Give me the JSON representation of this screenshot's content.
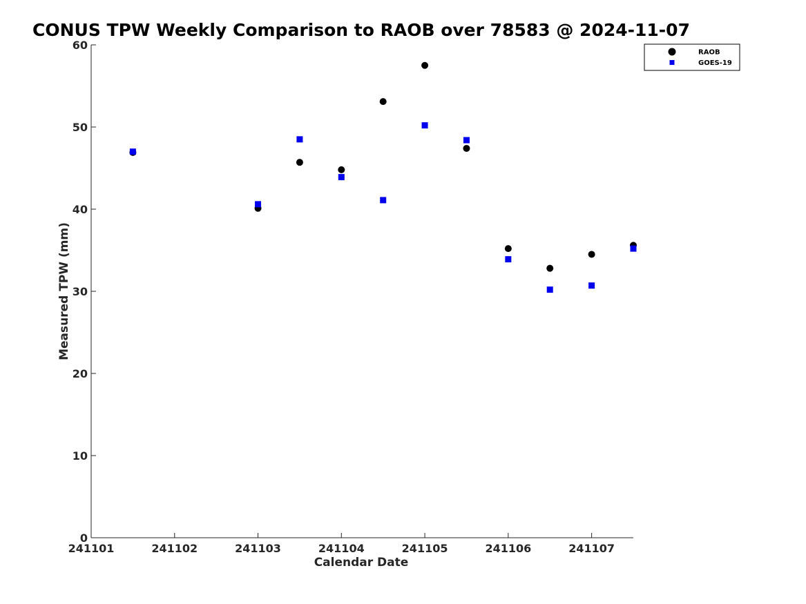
{
  "chart_data": {
    "type": "scatter",
    "title": "CONUS TPW Weekly Comparison to RAOB over 78583 @ 2024-11-07",
    "xlabel": "Calendar Date",
    "ylabel": "Measured TPW (mm)",
    "xlim": [
      241101,
      241107.5
    ],
    "ylim": [
      0,
      60
    ],
    "x_ticks": [
      {
        "value": 241101,
        "label": "241101"
      },
      {
        "value": 241102,
        "label": "241102"
      },
      {
        "value": 241103,
        "label": "241103"
      },
      {
        "value": 241104,
        "label": "241104"
      },
      {
        "value": 241105,
        "label": "241105"
      },
      {
        "value": 241106,
        "label": "241106"
      },
      {
        "value": 241107,
        "label": "241107"
      }
    ],
    "y_ticks": [
      {
        "value": 0,
        "label": "0"
      },
      {
        "value": 10,
        "label": "10"
      },
      {
        "value": 20,
        "label": "20"
      },
      {
        "value": 30,
        "label": "30"
      },
      {
        "value": 40,
        "label": "40"
      },
      {
        "value": 50,
        "label": "50"
      },
      {
        "value": 60,
        "label": "60"
      }
    ],
    "grid": false,
    "legend_position": "top-right",
    "series": [
      {
        "name": "RAOB",
        "marker": "circle",
        "color": "#000000",
        "points": [
          {
            "x": 241101.5,
            "y": 46.9
          },
          {
            "x": 241103.0,
            "y": 40.1
          },
          {
            "x": 241103.5,
            "y": 45.7
          },
          {
            "x": 241104.0,
            "y": 44.8
          },
          {
            "x": 241104.5,
            "y": 53.1
          },
          {
            "x": 241105.0,
            "y": 57.5
          },
          {
            "x": 241105.5,
            "y": 47.4
          },
          {
            "x": 241106.0,
            "y": 35.2
          },
          {
            "x": 241106.5,
            "y": 32.8
          },
          {
            "x": 241107.0,
            "y": 34.5
          },
          {
            "x": 241107.5,
            "y": 35.6
          }
        ]
      },
      {
        "name": "GOES-19",
        "marker": "square",
        "color": "#0000ee",
        "points": [
          {
            "x": 241101.5,
            "y": 47.0
          },
          {
            "x": 241103.0,
            "y": 40.6
          },
          {
            "x": 241103.5,
            "y": 48.5
          },
          {
            "x": 241104.0,
            "y": 43.9
          },
          {
            "x": 241104.5,
            "y": 41.1
          },
          {
            "x": 241105.0,
            "y": 50.2
          },
          {
            "x": 241105.5,
            "y": 48.4
          },
          {
            "x": 241106.0,
            "y": 33.9
          },
          {
            "x": 241106.5,
            "y": 30.2
          },
          {
            "x": 241107.0,
            "y": 30.7
          },
          {
            "x": 241107.5,
            "y": 35.2
          }
        ]
      }
    ]
  }
}
